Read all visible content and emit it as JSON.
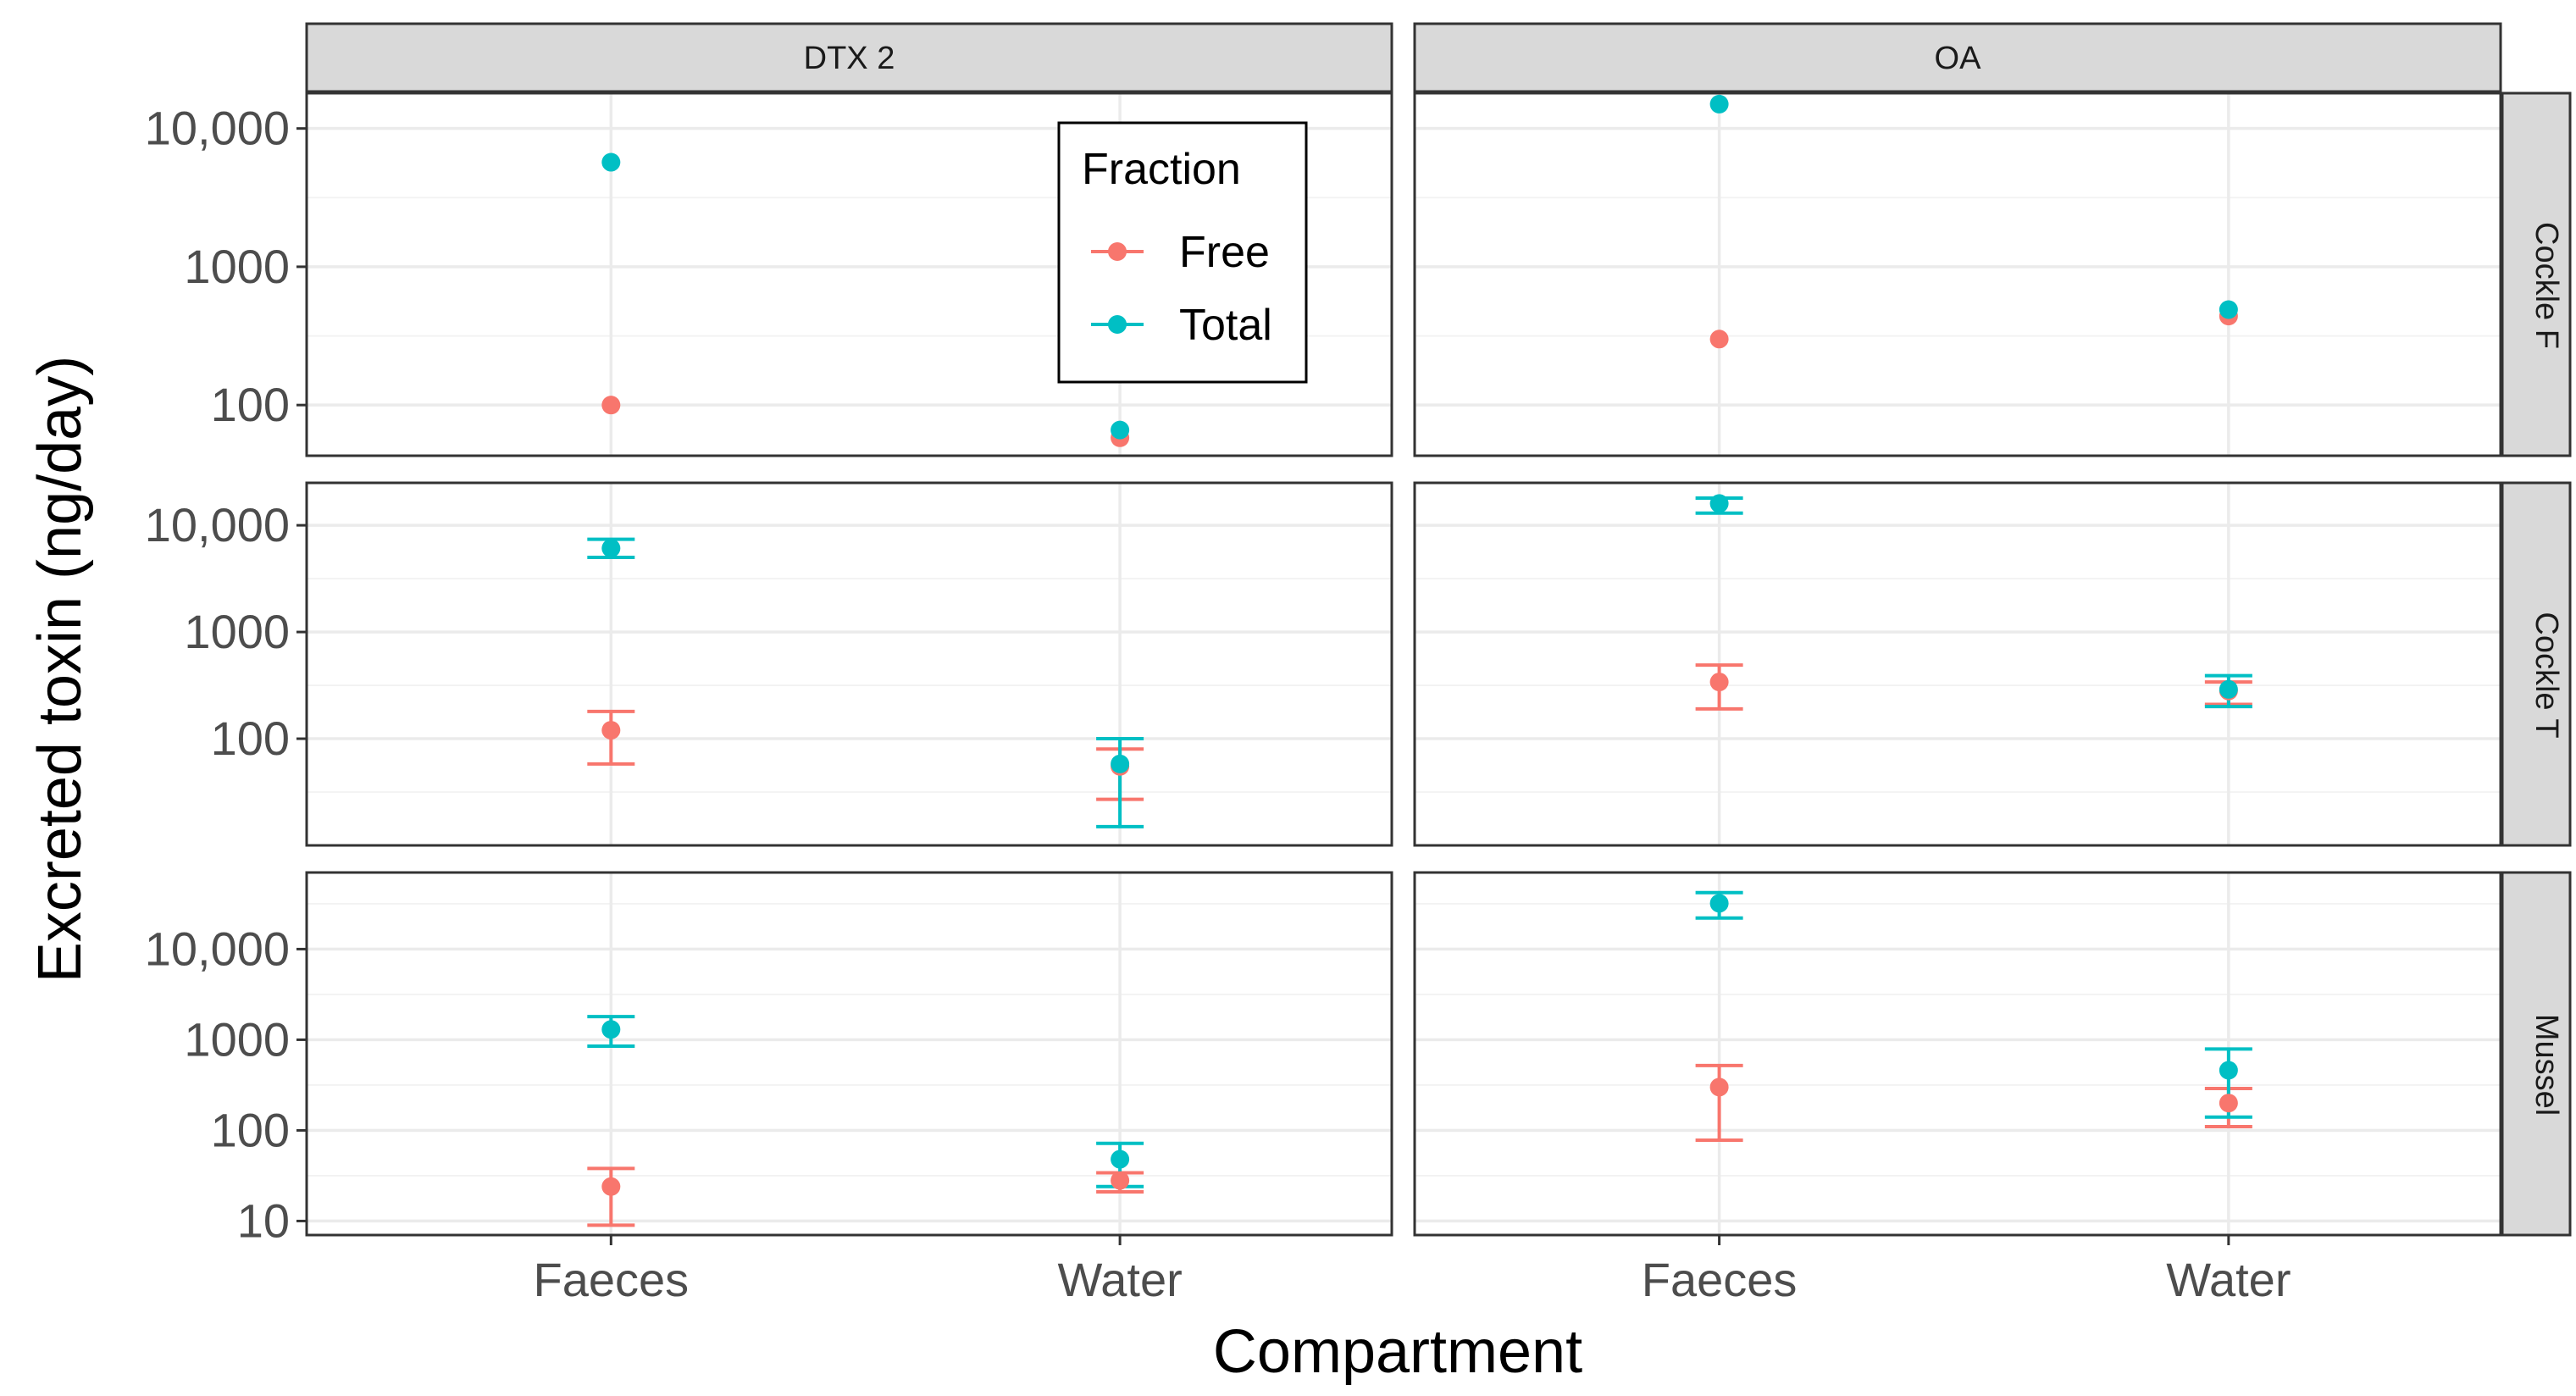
{
  "chart_data": {
    "type": "scatter",
    "subtype": "faceted point with error bars, log10 y-axis",
    "xlabel": "Compartment",
    "ylabel": "Excreted toxin (ng/day)",
    "categories": [
      "Faeces",
      "Water"
    ],
    "facet_columns": [
      "DTX 2",
      "OA"
    ],
    "facet_rows": [
      "Cockle F",
      "Cockle T",
      "Mussel"
    ],
    "legend": {
      "title": "Fraction",
      "position": "inside top-right of first panel",
      "entries": [
        {
          "name": "Free",
          "color": "#F8766D"
        },
        {
          "name": "Total",
          "color": "#00BFC4"
        }
      ]
    },
    "rows": [
      {
        "name": "Cockle F",
        "ylim": [
          43,
          18000
        ],
        "ticks": [
          100,
          1000,
          10000
        ],
        "tick_labels": [
          "100",
          "1000",
          "10,000"
        ],
        "panels": {
          "DTX 2": {
            "Free": [
              {
                "x": "Faeces",
                "y": 100
              },
              {
                "x": "Water",
                "y": 58
              }
            ],
            "Total": [
              {
                "x": "Faeces",
                "y": 5700
              },
              {
                "x": "Water",
                "y": 66
              }
            ]
          },
          "OA": {
            "Free": [
              {
                "x": "Faeces",
                "y": 300
              },
              {
                "x": "Water",
                "y": 440
              }
            ],
            "Total": [
              {
                "x": "Faeces",
                "y": 15000
              },
              {
                "x": "Water",
                "y": 490
              }
            ]
          }
        }
      },
      {
        "name": "Cockle T",
        "ylim": [
          10,
          25000
        ],
        "ticks": [
          100,
          1000,
          10000
        ],
        "tick_labels": [
          "100",
          "1000",
          "10,000"
        ],
        "panels": {
          "DTX 2": {
            "Free": [
              {
                "x": "Faeces",
                "y": 120,
                "ymin": 58,
                "ymax": 180
              },
              {
                "x": "Water",
                "y": 55,
                "ymin": 27,
                "ymax": 80
              }
            ],
            "Total": [
              {
                "x": "Faeces",
                "y": 6100,
                "ymin": 5000,
                "ymax": 7400
              },
              {
                "x": "Water",
                "y": 58,
                "ymin": 15,
                "ymax": 100
              }
            ]
          },
          "OA": {
            "Free": [
              {
                "x": "Faeces",
                "y": 340,
                "ymin": 190,
                "ymax": 490
              },
              {
                "x": "Water",
                "y": 280,
                "ymin": 210,
                "ymax": 340
              }
            ],
            "Total": [
              {
                "x": "Faeces",
                "y": 16000,
                "ymin": 13000,
                "ymax": 18000
              },
              {
                "x": "Water",
                "y": 290,
                "ymin": 200,
                "ymax": 390
              }
            ]
          }
        }
      },
      {
        "name": "Mussel",
        "ylim": [
          7,
          70000
        ],
        "ticks": [
          10,
          100,
          1000,
          10000
        ],
        "tick_labels": [
          "10",
          "100",
          "1000",
          "10,000"
        ],
        "panels": {
          "DTX 2": {
            "Free": [
              {
                "x": "Faeces",
                "y": 24,
                "ymin": 9,
                "ymax": 38
              },
              {
                "x": "Water",
                "y": 28,
                "ymin": 21,
                "ymax": 34
              }
            ],
            "Total": [
              {
                "x": "Faeces",
                "y": 1300,
                "ymin": 850,
                "ymax": 1800
              },
              {
                "x": "Water",
                "y": 48,
                "ymin": 24,
                "ymax": 72
              }
            ]
          },
          "OA": {
            "Free": [
              {
                "x": "Faeces",
                "y": 300,
                "ymin": 78,
                "ymax": 520
              },
              {
                "x": "Water",
                "y": 200,
                "ymin": 110,
                "ymax": 290
              }
            ],
            "Total": [
              {
                "x": "Faeces",
                "y": 32000,
                "ymin": 22000,
                "ymax": 42000
              },
              {
                "x": "Water",
                "y": 460,
                "ymin": 140,
                "ymax": 790
              }
            ]
          }
        }
      }
    ]
  }
}
